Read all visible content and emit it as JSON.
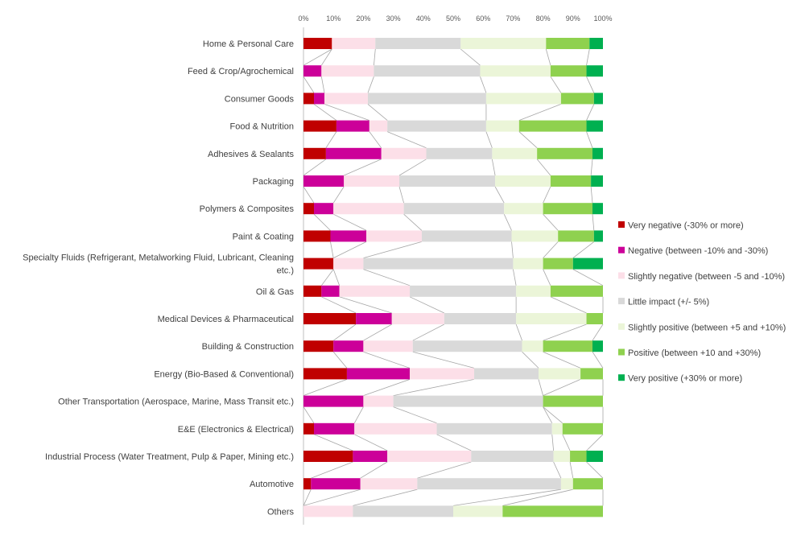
{
  "chart_data": {
    "type": "bar",
    "orientation": "horizontal",
    "stacked": "percent",
    "xlim": [
      0,
      100
    ],
    "x_ticks": [
      "0%",
      "10%",
      "20%",
      "30%",
      "40%",
      "50%",
      "60%",
      "70%",
      "80%",
      "90%",
      "100%"
    ],
    "grid": false,
    "series_lines": true,
    "legend_position": "right",
    "categories": [
      [
        "Home & Personal Care"
      ],
      [
        "Feed & Crop/Agrochemical"
      ],
      [
        "Consumer Goods"
      ],
      [
        "Food & Nutrition"
      ],
      [
        "Adhesives & Sealants"
      ],
      [
        "Packaging"
      ],
      [
        "Polymers & Composites"
      ],
      [
        "Paint & Coating"
      ],
      [
        "Specialty Fluids (Refrigerant, Metalworking Fluid, Lubricant, Cleaning",
        "etc.)"
      ],
      [
        "Oil & Gas"
      ],
      [
        "Medical Devices & Pharmaceutical"
      ],
      [
        "Building & Construction"
      ],
      [
        "Energy (Bio-Based & Conventional)"
      ],
      [
        "Other Transportation (Aerospace, Marine, Mass Transit etc.)"
      ],
      [
        "E&E (Electronics & Electrical)"
      ],
      [
        "Industrial Process (Water Treatment, Pulp & Paper, Mining etc.)"
      ],
      [
        "Automotive"
      ],
      [
        "Others"
      ]
    ],
    "series": [
      {
        "name": "Very negative (-30% or more)",
        "color": "#c00000",
        "values": [
          9.5,
          0,
          3.5,
          11,
          7.5,
          0,
          3.5,
          9,
          10,
          6,
          17.5,
          10,
          14.5,
          0,
          3.5,
          16.5,
          2.5,
          0
        ]
      },
      {
        "name": "Negative (between -10% and -30%)",
        "color": "#cc0099",
        "values": [
          0,
          6,
          3.5,
          11,
          18.5,
          13.5,
          6.5,
          12,
          0,
          6,
          12,
          10,
          21,
          20,
          13.5,
          11.5,
          16.5,
          0
        ]
      },
      {
        "name": "Slightly negative (between -5 and -10%)",
        "color": "#fcdfe8",
        "values": [
          14.5,
          17.5,
          14.5,
          6,
          15,
          18.5,
          23.5,
          18.5,
          10,
          23.5,
          17.5,
          16.5,
          21.5,
          10,
          27.5,
          28,
          19,
          16.5
        ]
      },
      {
        "name": "Little impact (+/- 5%)",
        "color": "#d9d9d9",
        "values": [
          28.5,
          35.5,
          39.5,
          33,
          22,
          32,
          33.5,
          30,
          50,
          35.5,
          24,
          36.5,
          21.5,
          50,
          38.5,
          27.5,
          48,
          33.5
        ]
      },
      {
        "name": "Slightly positive (between +5 and +10%)",
        "color": "#ebf5d8",
        "values": [
          28.5,
          23.5,
          25,
          11,
          15,
          18.5,
          13,
          15.5,
          10,
          11.5,
          23.5,
          7,
          14,
          0,
          3.5,
          5.5,
          4,
          16.5
        ]
      },
      {
        "name": "Positive (between +10 and +30%)",
        "color": "#8fd14f",
        "values": [
          14.5,
          12,
          11,
          22.5,
          18.5,
          13.5,
          16.5,
          12,
          10,
          17.5,
          5.5,
          16.5,
          7.5,
          20,
          13.5,
          5.5,
          10,
          33.5
        ]
      },
      {
        "name": "Very positive (+30% or more)",
        "color": "#00b050",
        "values": [
          4.5,
          5.5,
          3,
          5.5,
          3.5,
          4,
          3.5,
          3,
          10,
          0,
          0,
          3.5,
          0,
          0,
          0,
          5.5,
          0,
          0
        ]
      }
    ]
  }
}
